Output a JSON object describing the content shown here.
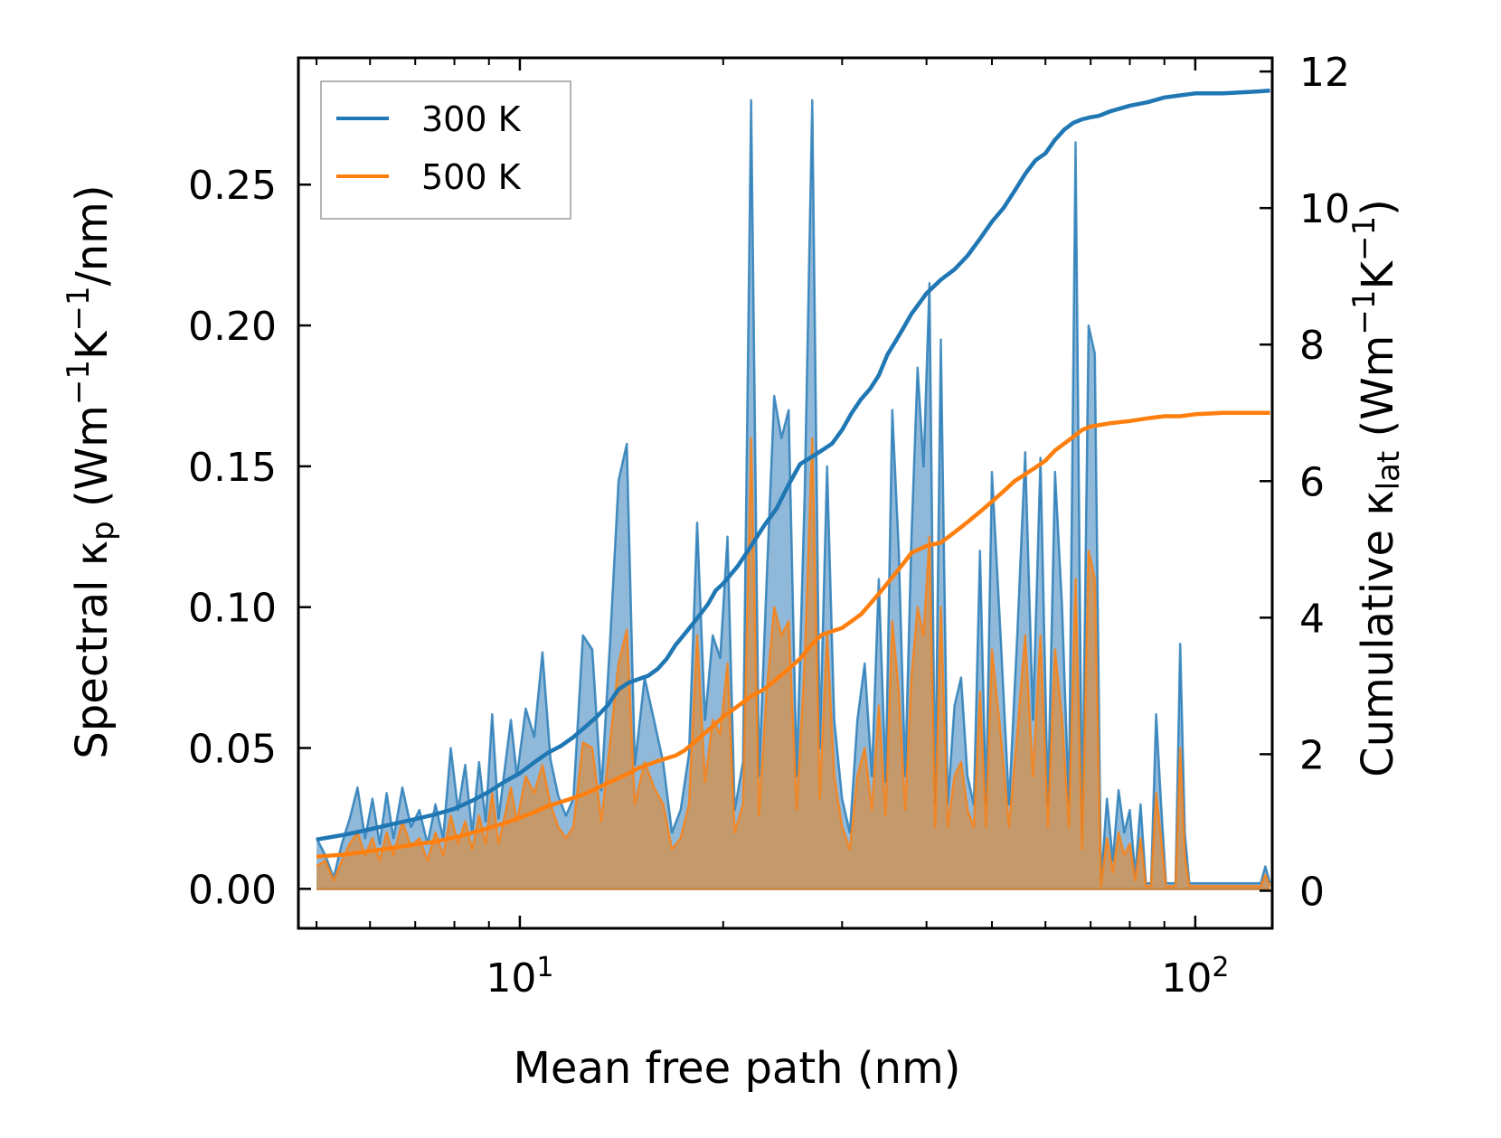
{
  "chart_data": {
    "type": "line",
    "xscale": "log",
    "xlabel": "Mean free path (nm)",
    "ylabel_left_parts": [
      "Spectral κ",
      "p",
      " (Wm",
      "−1",
      "K",
      "−1",
      "/nm)"
    ],
    "ylabel_right_parts": [
      "Cumulative κ",
      "lat",
      " (Wm",
      "−1",
      "K",
      "−1",
      ")"
    ],
    "xlim": [
      4.7,
      130
    ],
    "ylim_left": [
      -0.014,
      0.295
    ],
    "ylim_right": [
      -0.55,
      12.2
    ],
    "x_major_ticks": [
      {
        "value": 10,
        "base": "10",
        "exp": "1"
      },
      {
        "value": 100,
        "base": "10",
        "exp": "2"
      }
    ],
    "y_left_ticks": [
      {
        "value": 0.0,
        "label": "0.00"
      },
      {
        "value": 0.05,
        "label": "0.05"
      },
      {
        "value": 0.1,
        "label": "0.10"
      },
      {
        "value": 0.15,
        "label": "0.15"
      },
      {
        "value": 0.2,
        "label": "0.20"
      },
      {
        "value": 0.25,
        "label": "0.25"
      }
    ],
    "y_right_ticks": [
      {
        "value": 0,
        "label": "0"
      },
      {
        "value": 2,
        "label": "2"
      },
      {
        "value": 4,
        "label": "4"
      },
      {
        "value": 6,
        "label": "6"
      },
      {
        "value": 8,
        "label": "8"
      },
      {
        "value": 10,
        "label": "10"
      },
      {
        "value": 12,
        "label": "12"
      }
    ],
    "legend": {
      "position": "top-left",
      "entries": [
        "300 K",
        "500 K"
      ]
    },
    "colors": {
      "300K": "#1f77b4",
      "500K": "#ff7f0e",
      "fill300": "#8fb8d9",
      "fill500": "#c49a6c"
    },
    "spectral": {
      "x": [
        5.0,
        5.15,
        5.3,
        5.45,
        5.6,
        5.75,
        5.9,
        6.05,
        6.2,
        6.35,
        6.5,
        6.7,
        6.9,
        7.1,
        7.3,
        7.5,
        7.7,
        7.9,
        8.1,
        8.3,
        8.5,
        8.7,
        8.9,
        9.1,
        9.3,
        9.5,
        9.7,
        9.9,
        10.2,
        10.5,
        10.8,
        11.1,
        11.4,
        11.7,
        12.0,
        12.4,
        12.8,
        13.2,
        13.6,
        14.0,
        14.4,
        14.8,
        15.3,
        15.8,
        16.3,
        16.8,
        17.3,
        17.8,
        18.3,
        18.8,
        19.3,
        19.8,
        20.3,
        20.8,
        21.4,
        22.0,
        22.6,
        23.2,
        23.8,
        24.4,
        25.0,
        25.7,
        26.4,
        27.1,
        27.8,
        28.5,
        29.2,
        30.0,
        30.8,
        31.6,
        32.4,
        33.2,
        34.0,
        34.8,
        35.6,
        36.4,
        37.2,
        38.0,
        38.8,
        39.6,
        40.4,
        41.2,
        42.0,
        43.0,
        44.0,
        45.0,
        46.0,
        47.0,
        48.0,
        49.0,
        50.0,
        51.5,
        53.0,
        54.5,
        56.0,
        57.5,
        59.0,
        60.5,
        62.0,
        63.5,
        65.0,
        66.5,
        68.0,
        69.5,
        71.0,
        72.5,
        74.0,
        75.5,
        77.0,
        78.5,
        80.0,
        81.5,
        83.0,
        84.5,
        86.0,
        87.5,
        89.0,
        90.5,
        92.0,
        93.5,
        95.0,
        96.5,
        98.0,
        99.5,
        101,
        104,
        108,
        113,
        118,
        122,
        125,
        127,
        129
      ],
      "y300": [
        0.018,
        0.012,
        0.004,
        0.016,
        0.025,
        0.036,
        0.018,
        0.032,
        0.016,
        0.034,
        0.018,
        0.036,
        0.022,
        0.028,
        0.016,
        0.03,
        0.018,
        0.05,
        0.028,
        0.044,
        0.02,
        0.045,
        0.024,
        0.062,
        0.025,
        0.043,
        0.06,
        0.04,
        0.064,
        0.054,
        0.084,
        0.046,
        0.033,
        0.026,
        0.032,
        0.09,
        0.085,
        0.035,
        0.088,
        0.145,
        0.158,
        0.044,
        0.075,
        0.06,
        0.045,
        0.02,
        0.028,
        0.048,
        0.13,
        0.06,
        0.09,
        0.082,
        0.125,
        0.028,
        0.045,
        0.28,
        0.04,
        0.11,
        0.175,
        0.16,
        0.17,
        0.04,
        0.14,
        0.28,
        0.05,
        0.15,
        0.06,
        0.032,
        0.02,
        0.06,
        0.08,
        0.04,
        0.11,
        0.038,
        0.17,
        0.12,
        0.04,
        0.125,
        0.185,
        0.15,
        0.215,
        0.03,
        0.195,
        0.03,
        0.065,
        0.075,
        0.04,
        0.03,
        0.12,
        0.03,
        0.148,
        0.09,
        0.03,
        0.09,
        0.155,
        0.06,
        0.153,
        0.03,
        0.148,
        0.1,
        0.03,
        0.265,
        0.02,
        0.2,
        0.19,
        0.002,
        0.032,
        0.01,
        0.035,
        0.02,
        0.028,
        0.005,
        0.03,
        0.002,
        0.002,
        0.062,
        0.03,
        0.002,
        0.002,
        0.002,
        0.087,
        0.02,
        0.002,
        0.002,
        0.002,
        0.002,
        0.002,
        0.002,
        0.002,
        0.002,
        0.002,
        0.008,
        0.002
      ],
      "y500": [
        0.008,
        0.01,
        0.003,
        0.01,
        0.016,
        0.02,
        0.012,
        0.018,
        0.01,
        0.02,
        0.012,
        0.024,
        0.015,
        0.018,
        0.01,
        0.02,
        0.012,
        0.026,
        0.016,
        0.024,
        0.014,
        0.026,
        0.016,
        0.034,
        0.016,
        0.026,
        0.036,
        0.024,
        0.04,
        0.034,
        0.044,
        0.03,
        0.022,
        0.018,
        0.022,
        0.052,
        0.05,
        0.024,
        0.052,
        0.08,
        0.092,
        0.03,
        0.045,
        0.036,
        0.03,
        0.014,
        0.018,
        0.03,
        0.09,
        0.038,
        0.06,
        0.055,
        0.08,
        0.02,
        0.03,
        0.16,
        0.026,
        0.07,
        0.1,
        0.09,
        0.095,
        0.028,
        0.08,
        0.16,
        0.032,
        0.09,
        0.04,
        0.022,
        0.014,
        0.04,
        0.05,
        0.028,
        0.065,
        0.026,
        0.095,
        0.07,
        0.028,
        0.075,
        0.1,
        0.09,
        0.125,
        0.022,
        0.1,
        0.022,
        0.04,
        0.045,
        0.028,
        0.022,
        0.07,
        0.022,
        0.085,
        0.055,
        0.022,
        0.055,
        0.09,
        0.04,
        0.09,
        0.022,
        0.085,
        0.06,
        0.022,
        0.11,
        0.014,
        0.12,
        0.11,
        0.001,
        0.018,
        0.006,
        0.02,
        0.012,
        0.016,
        0.003,
        0.018,
        0.001,
        0.001,
        0.034,
        0.018,
        0.001,
        0.001,
        0.001,
        0.05,
        0.012,
        0.001,
        0.001,
        0.001,
        0.001,
        0.001,
        0.001,
        0.001,
        0.001,
        0.001,
        0.005,
        0.001
      ]
    },
    "cumulative": {
      "x": [
        5.0,
        5.5,
        6.0,
        6.5,
        7.0,
        7.5,
        8.0,
        8.5,
        9.0,
        9.5,
        10.0,
        10.5,
        11.0,
        11.5,
        12.0,
        12.5,
        13.0,
        13.5,
        14.0,
        14.5,
        15.0,
        15.5,
        16.0,
        16.5,
        17.0,
        17.5,
        18.0,
        18.5,
        19.0,
        19.5,
        20.0,
        21.0,
        22.0,
        23.0,
        24.0,
        25.0,
        26.0,
        27.0,
        28.0,
        29.0,
        30.0,
        31.0,
        32.0,
        33.0,
        34.0,
        35.0,
        36.0,
        37.0,
        38.0,
        39.0,
        40.0,
        42.0,
        44.0,
        46.0,
        48.0,
        50.0,
        52.0,
        54.0,
        56.0,
        58.0,
        60.0,
        62.0,
        64.0,
        66.0,
        68.0,
        70.0,
        72.0,
        75.0,
        80.0,
        85.0,
        90.0,
        95.0,
        100.0,
        110.0,
        120.0,
        129.0
      ],
      "y300": [
        0.75,
        0.82,
        0.9,
        0.98,
        1.05,
        1.12,
        1.2,
        1.32,
        1.45,
        1.6,
        1.72,
        1.88,
        2.02,
        2.12,
        2.25,
        2.4,
        2.55,
        2.72,
        2.95,
        3.05,
        3.1,
        3.15,
        3.25,
        3.4,
        3.6,
        3.75,
        3.9,
        4.05,
        4.2,
        4.4,
        4.5,
        4.75,
        5.05,
        5.35,
        5.6,
        5.95,
        6.25,
        6.35,
        6.45,
        6.55,
        6.75,
        7.0,
        7.2,
        7.35,
        7.55,
        7.85,
        8.05,
        8.25,
        8.45,
        8.6,
        8.75,
        8.95,
        9.1,
        9.3,
        9.55,
        9.8,
        10.0,
        10.25,
        10.5,
        10.7,
        10.8,
        11.0,
        11.15,
        11.25,
        11.3,
        11.33,
        11.35,
        11.42,
        11.5,
        11.55,
        11.62,
        11.65,
        11.68,
        11.68,
        11.7,
        11.72
      ],
      "y500": [
        0.5,
        0.53,
        0.58,
        0.63,
        0.68,
        0.72,
        0.78,
        0.85,
        0.92,
        0.99,
        1.07,
        1.15,
        1.24,
        1.3,
        1.36,
        1.42,
        1.5,
        1.58,
        1.65,
        1.72,
        1.8,
        1.85,
        1.9,
        1.94,
        1.98,
        2.05,
        2.15,
        2.25,
        2.35,
        2.45,
        2.55,
        2.7,
        2.85,
        2.95,
        3.1,
        3.25,
        3.4,
        3.6,
        3.75,
        3.8,
        3.85,
        3.95,
        4.05,
        4.2,
        4.35,
        4.5,
        4.65,
        4.8,
        4.95,
        5.0,
        5.05,
        5.1,
        5.25,
        5.4,
        5.55,
        5.7,
        5.85,
        6.0,
        6.1,
        6.2,
        6.3,
        6.45,
        6.55,
        6.65,
        6.75,
        6.8,
        6.82,
        6.85,
        6.88,
        6.92,
        6.95,
        6.95,
        6.98,
        7.0,
        7.0,
        7.0
      ]
    }
  }
}
